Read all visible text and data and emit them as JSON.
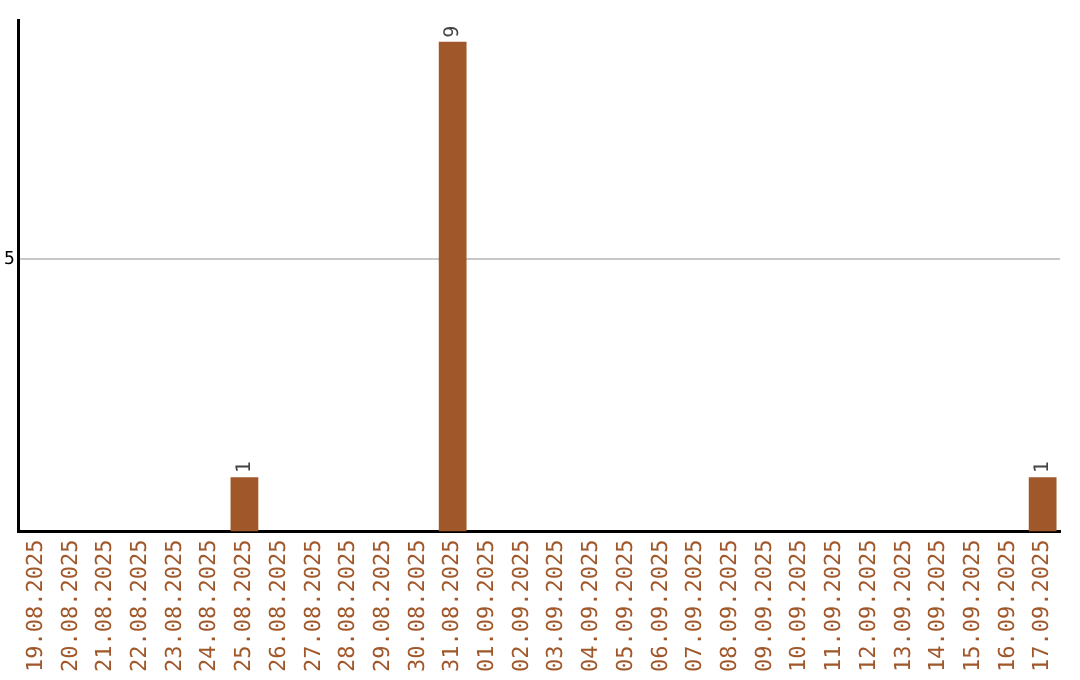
{
  "chart_data": {
    "type": "bar",
    "categories": [
      "19.08.2025",
      "20.08.2025",
      "21.08.2025",
      "22.08.2025",
      "23.08.2025",
      "24.08.2025",
      "25.08.2025",
      "26.08.2025",
      "27.08.2025",
      "28.08.2025",
      "29.08.2025",
      "30.08.2025",
      "31.08.2025",
      "01.09.2025",
      "02.09.2025",
      "03.09.2025",
      "04.09.2025",
      "05.09.2025",
      "06.09.2025",
      "07.09.2025",
      "08.09.2025",
      "09.09.2025",
      "10.09.2025",
      "11.09.2025",
      "12.09.2025",
      "13.09.2025",
      "14.09.2025",
      "15.09.2025",
      "16.09.2025",
      "17.09.2025"
    ],
    "values": [
      0,
      0,
      0,
      0,
      0,
      0,
      1,
      0,
      0,
      0,
      0,
      0,
      9,
      0,
      0,
      0,
      0,
      0,
      0,
      0,
      0,
      0,
      0,
      0,
      0,
      0,
      0,
      0,
      0,
      1
    ],
    "value_labels": [
      null,
      null,
      null,
      null,
      null,
      null,
      "1",
      null,
      null,
      null,
      null,
      null,
      "9",
      null,
      null,
      null,
      null,
      null,
      null,
      null,
      null,
      null,
      null,
      null,
      null,
      null,
      null,
      null,
      null,
      "1"
    ],
    "color": "#a0572a",
    "ylim": [
      0,
      9.4
    ],
    "yticks": [
      5
    ],
    "grid": "y",
    "legend": false
  }
}
